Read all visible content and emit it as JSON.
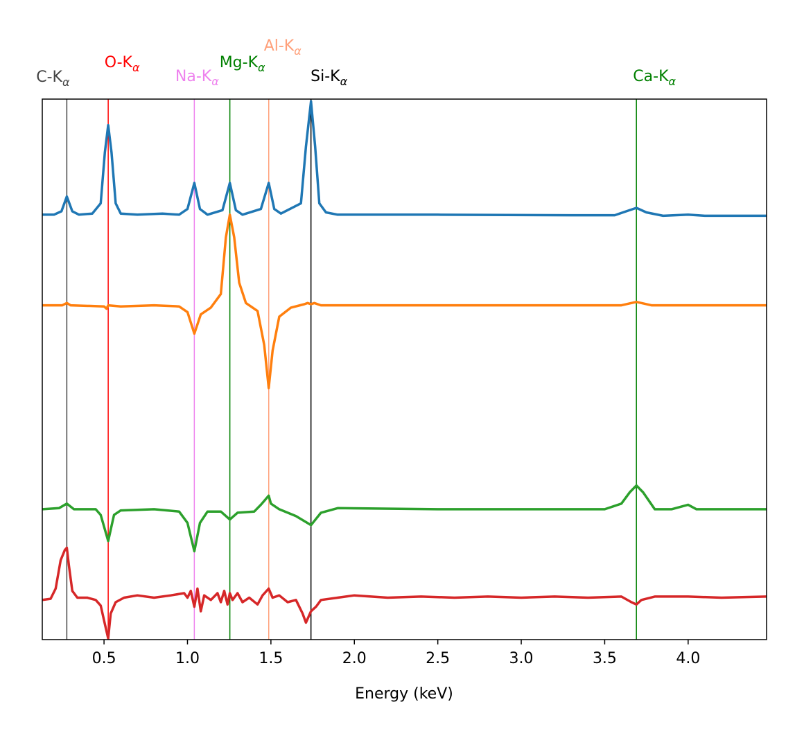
{
  "chart_data": {
    "type": "line",
    "xlabel": "Energy (keV)",
    "ylabel": "",
    "xlim": [
      0.13,
      4.47
    ],
    "ylim": [
      -3.75,
      1.02
    ],
    "yticks_visible": false,
    "xticks": [
      0.5,
      1.0,
      1.5,
      2.0,
      2.5,
      3.0,
      3.5,
      4.0
    ],
    "xtick_labels": [
      "0.5",
      "1.0",
      "1.5",
      "2.0",
      "2.5",
      "3.0",
      "3.5",
      "4.0"
    ],
    "grid": false,
    "legend": "none",
    "reference_lines": [
      {
        "name": "C",
        "label": "C-K",
        "x": 0.277,
        "color": "#444444"
      },
      {
        "name": "O",
        "label": "O-K",
        "x": 0.525,
        "color": "#ff0000"
      },
      {
        "name": "Na",
        "label": "Na-K",
        "x": 1.041,
        "color": "#ee82ee"
      },
      {
        "name": "Mg",
        "label": "Mg-K",
        "x": 1.254,
        "color": "#008000"
      },
      {
        "name": "Al",
        "label": "Al-K",
        "x": 1.487,
        "color": "#ffa07a"
      },
      {
        "name": "Si",
        "label": "Si-K",
        "x": 1.74,
        "color": "#000000"
      },
      {
        "name": "Ca",
        "label": "Ca-K",
        "x": 3.69,
        "color": "#008000"
      }
    ],
    "label_subscript": "α",
    "series": [
      {
        "color": "#1f77b4",
        "points": [
          [
            0.13,
            0.0
          ],
          [
            0.2,
            0.0
          ],
          [
            0.245,
            0.03
          ],
          [
            0.277,
            0.16
          ],
          [
            0.31,
            0.03
          ],
          [
            0.35,
            0.0
          ],
          [
            0.43,
            0.01
          ],
          [
            0.48,
            0.1
          ],
          [
            0.505,
            0.55
          ],
          [
            0.525,
            0.79
          ],
          [
            0.545,
            0.55
          ],
          [
            0.57,
            0.1
          ],
          [
            0.6,
            0.01
          ],
          [
            0.7,
            0.0
          ],
          [
            0.85,
            0.01
          ],
          [
            0.95,
            0.0
          ],
          [
            1.0,
            0.05
          ],
          [
            1.041,
            0.28
          ],
          [
            1.075,
            0.05
          ],
          [
            1.12,
            0.0
          ],
          [
            1.21,
            0.04
          ],
          [
            1.254,
            0.28
          ],
          [
            1.29,
            0.04
          ],
          [
            1.33,
            0.0
          ],
          [
            1.44,
            0.05
          ],
          [
            1.487,
            0.28
          ],
          [
            1.52,
            0.05
          ],
          [
            1.56,
            0.01
          ],
          [
            1.68,
            0.1
          ],
          [
            1.71,
            0.6
          ],
          [
            1.74,
            1.0
          ],
          [
            1.765,
            0.6
          ],
          [
            1.79,
            0.1
          ],
          [
            1.83,
            0.02
          ],
          [
            1.9,
            0.0
          ],
          [
            2.5,
            0.0
          ],
          [
            3.3,
            -0.005
          ],
          [
            3.56,
            -0.005
          ],
          [
            3.63,
            0.03
          ],
          [
            3.69,
            0.06
          ],
          [
            3.75,
            0.02
          ],
          [
            3.85,
            -0.01
          ],
          [
            4.0,
            0.0
          ],
          [
            4.1,
            -0.01
          ],
          [
            4.47,
            -0.01
          ]
        ]
      },
      {
        "color": "#ff7f0e",
        "points": [
          [
            0.13,
            -0.8
          ],
          [
            0.25,
            -0.8
          ],
          [
            0.277,
            -0.78
          ],
          [
            0.3,
            -0.8
          ],
          [
            0.5,
            -0.81
          ],
          [
            0.515,
            -0.83
          ],
          [
            0.525,
            -0.8
          ],
          [
            0.6,
            -0.81
          ],
          [
            0.8,
            -0.8
          ],
          [
            0.95,
            -0.81
          ],
          [
            1.0,
            -0.86
          ],
          [
            1.041,
            -1.05
          ],
          [
            1.08,
            -0.88
          ],
          [
            1.14,
            -0.82
          ],
          [
            1.2,
            -0.7
          ],
          [
            1.23,
            -0.2
          ],
          [
            1.254,
            0.0
          ],
          [
            1.28,
            -0.2
          ],
          [
            1.31,
            -0.6
          ],
          [
            1.35,
            -0.78
          ],
          [
            1.42,
            -0.85
          ],
          [
            1.46,
            -1.15
          ],
          [
            1.487,
            -1.53
          ],
          [
            1.51,
            -1.2
          ],
          [
            1.55,
            -0.9
          ],
          [
            1.62,
            -0.82
          ],
          [
            1.7,
            -0.79
          ],
          [
            1.72,
            -0.78
          ],
          [
            1.74,
            -0.79
          ],
          [
            1.76,
            -0.78
          ],
          [
            1.8,
            -0.8
          ],
          [
            2.5,
            -0.8
          ],
          [
            3.5,
            -0.8
          ],
          [
            3.6,
            -0.8
          ],
          [
            3.69,
            -0.77
          ],
          [
            3.78,
            -0.8
          ],
          [
            4.47,
            -0.8
          ]
        ]
      },
      {
        "color": "#2ca02c",
        "points": [
          [
            0.13,
            -2.6
          ],
          [
            0.23,
            -2.59
          ],
          [
            0.277,
            -2.55
          ],
          [
            0.32,
            -2.6
          ],
          [
            0.45,
            -2.6
          ],
          [
            0.48,
            -2.65
          ],
          [
            0.525,
            -2.88
          ],
          [
            0.56,
            -2.65
          ],
          [
            0.6,
            -2.61
          ],
          [
            0.8,
            -2.6
          ],
          [
            0.95,
            -2.62
          ],
          [
            1.0,
            -2.72
          ],
          [
            1.041,
            -2.97
          ],
          [
            1.075,
            -2.72
          ],
          [
            1.12,
            -2.62
          ],
          [
            1.2,
            -2.62
          ],
          [
            1.254,
            -2.69
          ],
          [
            1.3,
            -2.63
          ],
          [
            1.4,
            -2.62
          ],
          [
            1.44,
            -2.56
          ],
          [
            1.487,
            -2.48
          ],
          [
            1.5,
            -2.55
          ],
          [
            1.55,
            -2.6
          ],
          [
            1.65,
            -2.66
          ],
          [
            1.74,
            -2.74
          ],
          [
            1.8,
            -2.63
          ],
          [
            1.9,
            -2.59
          ],
          [
            2.5,
            -2.6
          ],
          [
            3.5,
            -2.6
          ],
          [
            3.6,
            -2.55
          ],
          [
            3.65,
            -2.45
          ],
          [
            3.69,
            -2.39
          ],
          [
            3.73,
            -2.45
          ],
          [
            3.8,
            -2.6
          ],
          [
            3.9,
            -2.6
          ],
          [
            4.0,
            -2.56
          ],
          [
            4.05,
            -2.6
          ],
          [
            4.47,
            -2.6
          ]
        ]
      },
      {
        "color": "#d62728",
        "points": [
          [
            0.13,
            -3.4
          ],
          [
            0.18,
            -3.39
          ],
          [
            0.21,
            -3.3
          ],
          [
            0.24,
            -3.05
          ],
          [
            0.265,
            -2.96
          ],
          [
            0.277,
            -2.94
          ],
          [
            0.29,
            -3.1
          ],
          [
            0.31,
            -3.32
          ],
          [
            0.34,
            -3.38
          ],
          [
            0.4,
            -3.38
          ],
          [
            0.45,
            -3.4
          ],
          [
            0.48,
            -3.45
          ],
          [
            0.5,
            -3.58
          ],
          [
            0.525,
            -3.74
          ],
          [
            0.54,
            -3.52
          ],
          [
            0.57,
            -3.42
          ],
          [
            0.62,
            -3.38
          ],
          [
            0.7,
            -3.36
          ],
          [
            0.8,
            -3.38
          ],
          [
            0.9,
            -3.36
          ],
          [
            0.98,
            -3.34
          ],
          [
            1.0,
            -3.38
          ],
          [
            1.02,
            -3.32
          ],
          [
            1.041,
            -3.46
          ],
          [
            1.06,
            -3.3
          ],
          [
            1.08,
            -3.5
          ],
          [
            1.1,
            -3.36
          ],
          [
            1.14,
            -3.4
          ],
          [
            1.18,
            -3.34
          ],
          [
            1.2,
            -3.42
          ],
          [
            1.22,
            -3.32
          ],
          [
            1.24,
            -3.44
          ],
          [
            1.254,
            -3.34
          ],
          [
            1.27,
            -3.4
          ],
          [
            1.3,
            -3.34
          ],
          [
            1.33,
            -3.42
          ],
          [
            1.37,
            -3.38
          ],
          [
            1.42,
            -3.44
          ],
          [
            1.45,
            -3.36
          ],
          [
            1.487,
            -3.3
          ],
          [
            1.51,
            -3.38
          ],
          [
            1.55,
            -3.36
          ],
          [
            1.6,
            -3.42
          ],
          [
            1.65,
            -3.4
          ],
          [
            1.69,
            -3.52
          ],
          [
            1.71,
            -3.6
          ],
          [
            1.74,
            -3.5
          ],
          [
            1.77,
            -3.46
          ],
          [
            1.8,
            -3.4
          ],
          [
            1.9,
            -3.38
          ],
          [
            2.0,
            -3.36
          ],
          [
            2.2,
            -3.38
          ],
          [
            2.4,
            -3.37
          ],
          [
            2.6,
            -3.38
          ],
          [
            2.8,
            -3.37
          ],
          [
            3.0,
            -3.38
          ],
          [
            3.2,
            -3.37
          ],
          [
            3.4,
            -3.38
          ],
          [
            3.6,
            -3.37
          ],
          [
            3.66,
            -3.42
          ],
          [
            3.69,
            -3.44
          ],
          [
            3.72,
            -3.4
          ],
          [
            3.8,
            -3.37
          ],
          [
            4.0,
            -3.37
          ],
          [
            4.2,
            -3.38
          ],
          [
            4.47,
            -3.37
          ]
        ]
      }
    ]
  }
}
